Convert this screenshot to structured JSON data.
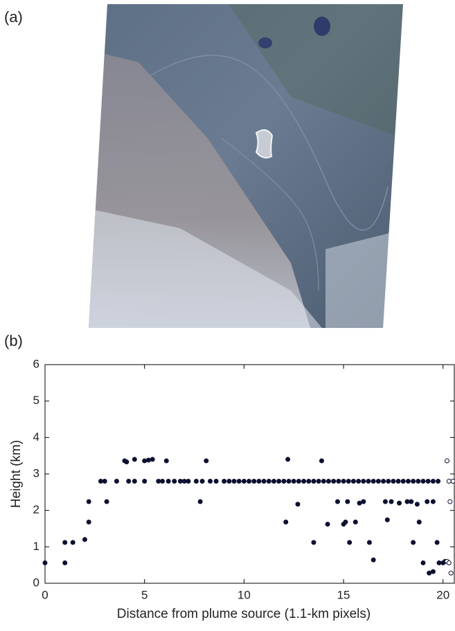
{
  "image_panel": {
    "label": "(a)"
  },
  "chart_data": {
    "type": "scatter",
    "label": "(b)",
    "xlabel": "Distance from plume source (1.1-km pixels)",
    "ylabel": "Height (km)",
    "xlim": [
      0,
      20.6
    ],
    "ylim": [
      0,
      6
    ],
    "xticks": [
      0,
      5,
      10,
      15,
      20
    ],
    "yticks": [
      0,
      1,
      2,
      3,
      4,
      5,
      6
    ],
    "series": [
      {
        "color": "#0d1030",
        "filled": true,
        "x": [
          0,
          1,
          1,
          1.4,
          2,
          2.2,
          2.2,
          2.8,
          3,
          3.1,
          3.6,
          4,
          4.1,
          4.2,
          4.5,
          4.5,
          5,
          5.2,
          5,
          5.4,
          5.7,
          5.9,
          6.1,
          6.2,
          6.5,
          6.8,
          7,
          7.2,
          7.6,
          7.8,
          7.9,
          8.1,
          8.3,
          8.6
        ],
        "values": [
          0.56,
          0.56,
          1.12,
          1.12,
          1.2,
          1.68,
          2.24,
          2.8,
          2.8,
          2.24,
          2.8,
          3.36,
          3.33,
          2.8,
          3.4,
          2.8,
          3.36,
          3.38,
          2.8,
          3.4,
          2.8,
          2.8,
          3.36,
          2.8,
          2.8,
          2.8,
          2.8,
          2.8,
          2.8,
          2.24,
          2.8,
          3.36,
          2.8,
          2.8
        ]
      },
      {
        "color": "#0d1030",
        "filled": true,
        "x": [
          9,
          9.25,
          9.5,
          9.75,
          10,
          10.25,
          10.5,
          10.75,
          11,
          11.25,
          11.5,
          11.75,
          12,
          12.25,
          12.5,
          12.75,
          13,
          13.25,
          13.5,
          13.75,
          14,
          14.25,
          14.5,
          14.75,
          15,
          15.25,
          15.5,
          15.75,
          16,
          16.25,
          16.5,
          16.75,
          17,
          17.25,
          17.5,
          17.75,
          18,
          18.25,
          18.5,
          18.75,
          19,
          19.25,
          19.5,
          19.75
        ],
        "values": [
          2.8,
          2.8,
          2.8,
          2.8,
          2.8,
          2.8,
          2.8,
          2.8,
          2.8,
          2.8,
          2.8,
          2.8,
          2.8,
          2.8,
          2.8,
          2.8,
          2.8,
          2.8,
          2.8,
          2.8,
          2.8,
          2.8,
          2.8,
          2.8,
          2.8,
          2.8,
          2.8,
          2.8,
          2.8,
          2.8,
          2.8,
          2.8,
          2.8,
          2.8,
          2.8,
          2.8,
          2.8,
          2.8,
          2.8,
          2.8,
          2.8,
          2.8,
          2.8,
          2.8
        ]
      },
      {
        "color": "#0d1030",
        "filled": true,
        "x": [
          12.1,
          12.2,
          12.7,
          13.5,
          13.9,
          14.2,
          14.7,
          15,
          15.1,
          15.2,
          15.3,
          15.6,
          15.8,
          16,
          16.3,
          16.5,
          17.1,
          17.2,
          17.4,
          17.8,
          18.2,
          18.4,
          18.5,
          18.7,
          18.8,
          19,
          19.2,
          19.3,
          19.5,
          19.5,
          19.7,
          19.8,
          20,
          20.1
        ],
        "values": [
          1.68,
          3.4,
          2.17,
          1.12,
          3.36,
          1.62,
          2.24,
          1.62,
          1.68,
          2.24,
          1.12,
          1.68,
          2.2,
          2.24,
          1.12,
          0.64,
          2.24,
          1.74,
          2.24,
          2.2,
          2.24,
          2.24,
          1.12,
          2.17,
          1.68,
          0.56,
          2.24,
          0.28,
          0.32,
          2.24,
          1.12,
          0.56,
          0.56,
          0.6
        ]
      },
      {
        "color": "#0d1030",
        "filled": false,
        "x": [
          20.2,
          20.3,
          20.35,
          20.2,
          20.3,
          20.4,
          20.5
        ],
        "values": [
          3.36,
          2.8,
          2.24,
          0.6,
          0.56,
          0.28,
          2.8
        ]
      }
    ]
  }
}
